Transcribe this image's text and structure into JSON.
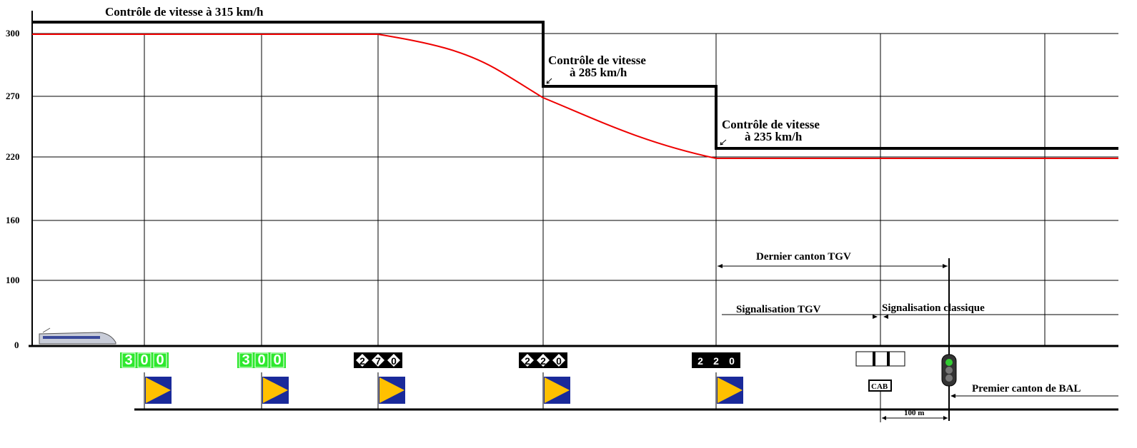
{
  "axis": {
    "labels": [
      "300",
      "270",
      "220",
      "160",
      "100",
      "0"
    ]
  },
  "annotations": {
    "speed_315": "Contrôle de vitesse à 315 km/h",
    "speed_285": [
      "Contrôle de vitesse",
      "à 285 km/h"
    ],
    "speed_235": [
      "Contrôle de vitesse",
      "à 235 km/h"
    ]
  },
  "cab_signals": [
    [
      "3",
      "0",
      "0"
    ],
    [
      "3",
      "0",
      "0"
    ],
    [
      "2",
      "7",
      "0"
    ],
    [
      "2",
      "2",
      "0"
    ],
    [
      "2",
      "2",
      "0"
    ]
  ],
  "spans": {
    "last_block": "Dernier canton TGV",
    "tgv_signalling": "Signalisation TGV",
    "classic_signalling": "Signalisation classique",
    "first_block": "Premier canton de BAL",
    "distance": "100 m",
    "cab": "CAB"
  }
}
